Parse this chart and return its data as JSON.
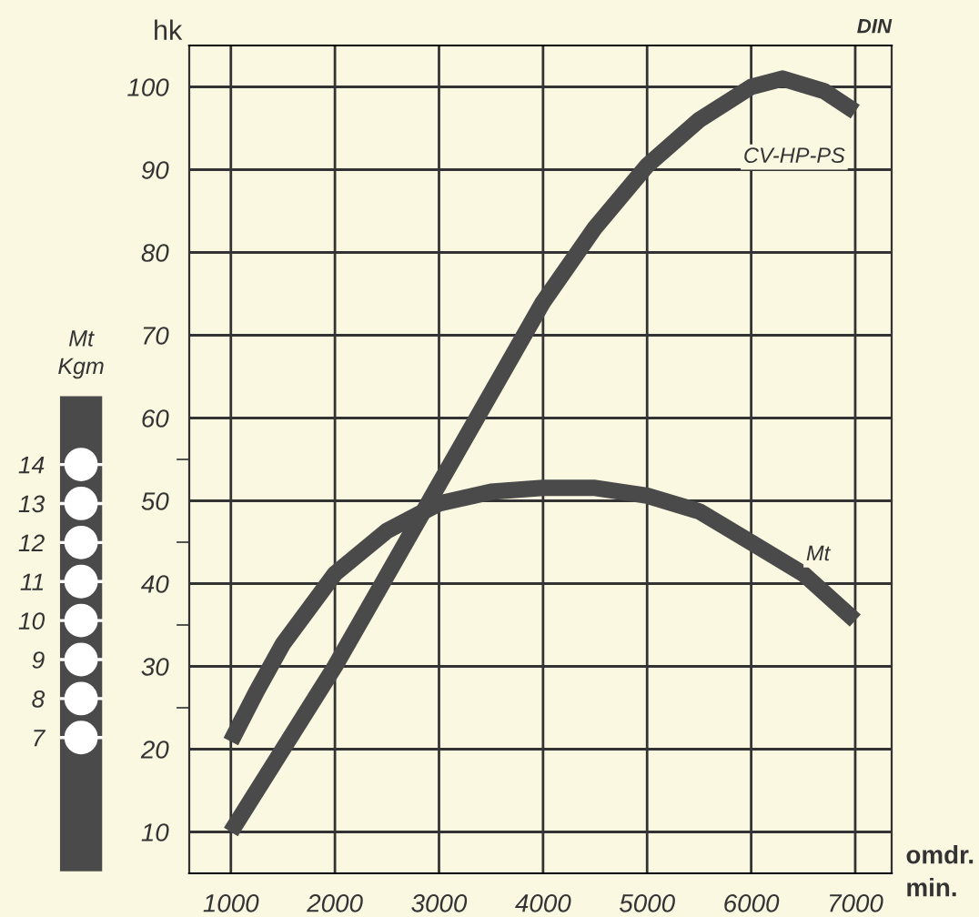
{
  "chart_data": {
    "type": "line",
    "ylabel": "hk",
    "xlabel": "omdr.\nmin.",
    "y2label": "Mt\nKgm",
    "annotations": [
      "DIN"
    ],
    "xlim": [
      600,
      7350
    ],
    "xticks": [
      1000,
      2000,
      3000,
      4000,
      5000,
      6000,
      7000
    ],
    "ylim": [
      5,
      105
    ],
    "yticks": [
      10,
      {
        "value": 25,
        "label": null
      },
      20,
      30,
      {
        "value": 35,
        "label": null
      },
      40,
      {
        "value": 45,
        "label": null
      },
      50,
      {
        "value": 55,
        "label": null
      },
      60,
      70,
      80,
      90,
      100
    ],
    "y2lim": [
      3.52,
      24.74
    ],
    "y2ticks": [
      7,
      8,
      9,
      10,
      11,
      12,
      13,
      14
    ],
    "grid": true,
    "marker": "none",
    "line_style": "solid",
    "series": [
      {
        "name": "CV-HP-PS",
        "color": "#4a4a4a",
        "x": [
          1000,
          1500,
          2000,
          2500,
          3000,
          3500,
          4000,
          4500,
          5000,
          5500,
          6000,
          6300,
          6700,
          7000
        ],
        "values": [
          10,
          20,
          30,
          41,
          52,
          63,
          74,
          83,
          90.5,
          96,
          100,
          101,
          99.5,
          97
        ]
      },
      {
        "name": "Mt",
        "color": "#4a4a4a",
        "axis": "y2",
        "x": [
          1000,
          1250,
          1500,
          2000,
          2500,
          3000,
          3500,
          4000,
          4500,
          5000,
          5500,
          6000,
          6500,
          7000
        ],
        "values": [
          6.9,
          8.2,
          9.4,
          11.2,
          12.3,
          13.0,
          13.3,
          13.4,
          13.4,
          13.2,
          12.8,
          12.0,
          11.2,
          10.0
        ]
      }
    ]
  }
}
